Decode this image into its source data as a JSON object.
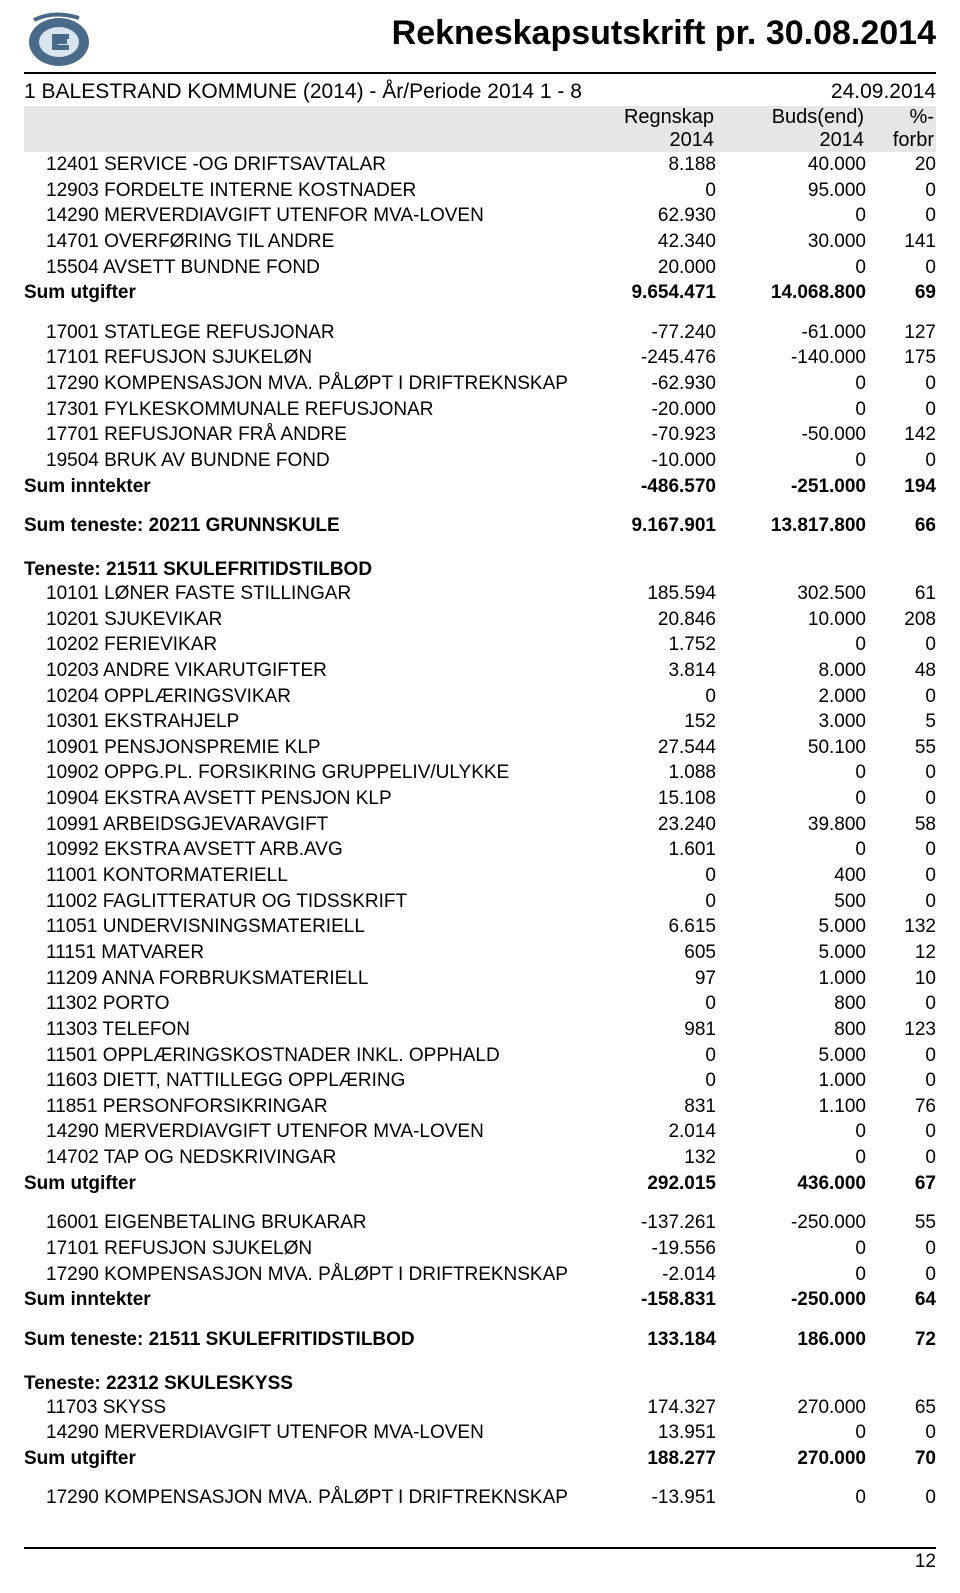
{
  "header": {
    "title": "Rekneskapsutskrift pr. 30.08.2014",
    "subtitle_left": "1 BALESTRAND KOMMUNE (2014) - År/Periode 2014 1 - 8",
    "subtitle_right": "24.09.2014",
    "col1a": "Regnskap",
    "col1b": "2014",
    "col2a": "Buds(end)",
    "col2b": "2014",
    "col3a": "%-",
    "col3b": "forbr"
  },
  "block1": {
    "rows": [
      {
        "d": "12401 SERVICE -OG DRIFTSAVTALAR",
        "a": "8.188",
        "b": "40.000",
        "c": "20"
      },
      {
        "d": "12903 FORDELTE INTERNE KOSTNADER",
        "a": "0",
        "b": "95.000",
        "c": "0"
      },
      {
        "d": "14290 MERVERDIAVGIFT UTENFOR MVA-LOVEN",
        "a": "62.930",
        "b": "0",
        "c": "0"
      },
      {
        "d": "14701 OVERFØRING TIL ANDRE",
        "a": "42.340",
        "b": "30.000",
        "c": "141"
      },
      {
        "d": "15504 AVSETT BUNDNE FOND",
        "a": "20.000",
        "b": "0",
        "c": "0"
      }
    ],
    "sum": {
      "d": "Sum utgifter",
      "a": "9.654.471",
      "b": "14.068.800",
      "c": "69"
    }
  },
  "block2": {
    "rows": [
      {
        "d": "17001 STATLEGE REFUSJONAR",
        "a": "-77.240",
        "b": "-61.000",
        "c": "127"
      },
      {
        "d": "17101 REFUSJON SJUKELØN",
        "a": "-245.476",
        "b": "-140.000",
        "c": "175"
      },
      {
        "d": "17290 KOMPENSASJON MVA. PÅLØPT I DRIFTREKNSKAP",
        "a": "-62.930",
        "b": "0",
        "c": "0"
      },
      {
        "d": "17301 FYLKESKOMMUNALE REFUSJONAR",
        "a": "-20.000",
        "b": "0",
        "c": "0"
      },
      {
        "d": "17701 REFUSJONAR FRÅ ANDRE",
        "a": "-70.923",
        "b": "-50.000",
        "c": "142"
      },
      {
        "d": "19504 BRUK AV BUNDNE FOND",
        "a": "-10.000",
        "b": "0",
        "c": "0"
      }
    ],
    "sum": {
      "d": "Sum inntekter",
      "a": "-486.570",
      "b": "-251.000",
      "c": "194"
    }
  },
  "sum_teneste1": {
    "d": "Sum teneste: 20211 GRUNNSKULE",
    "a": "9.167.901",
    "b": "13.817.800",
    "c": "66"
  },
  "teneste2_title": "Teneste: 21511 SKULEFRITIDSTILBOD",
  "block3": {
    "rows": [
      {
        "d": "10101 LØNER FASTE STILLINGAR",
        "a": "185.594",
        "b": "302.500",
        "c": "61"
      },
      {
        "d": "10201 SJUKEVIKAR",
        "a": "20.846",
        "b": "10.000",
        "c": "208"
      },
      {
        "d": "10202 FERIEVIKAR",
        "a": "1.752",
        "b": "0",
        "c": "0"
      },
      {
        "d": "10203 ANDRE VIKARUTGIFTER",
        "a": "3.814",
        "b": "8.000",
        "c": "48"
      },
      {
        "d": "10204 OPPLÆRINGSVIKAR",
        "a": "0",
        "b": "2.000",
        "c": "0"
      },
      {
        "d": "10301 EKSTRAHJELP",
        "a": "152",
        "b": "3.000",
        "c": "5"
      },
      {
        "d": "10901 PENSJONSPREMIE KLP",
        "a": "27.544",
        "b": "50.100",
        "c": "55"
      },
      {
        "d": "10902 OPPG.PL. FORSIKRING GRUPPELIV/ULYKKE",
        "a": "1.088",
        "b": "0",
        "c": "0"
      },
      {
        "d": "10904  EKSTRA AVSETT PENSJON KLP",
        "a": "15.108",
        "b": "0",
        "c": "0"
      },
      {
        "d": "10991 ARBEIDSGJEVARAVGIFT",
        "a": "23.240",
        "b": "39.800",
        "c": "58"
      },
      {
        "d": "10992 EKSTRA AVSETT ARB.AVG",
        "a": "1.601",
        "b": "0",
        "c": "0"
      },
      {
        "d": "11001 KONTORMATERIELL",
        "a": "0",
        "b": "400",
        "c": "0"
      },
      {
        "d": "11002 FAGLITTERATUR OG TIDSSKRIFT",
        "a": "0",
        "b": "500",
        "c": "0"
      },
      {
        "d": "11051 UNDERVISNINGSMATERIELL",
        "a": "6.615",
        "b": "5.000",
        "c": "132"
      },
      {
        "d": "11151 MATVARER",
        "a": "605",
        "b": "5.000",
        "c": "12"
      },
      {
        "d": "11209 ANNA FORBRUKSMATERIELL",
        "a": "97",
        "b": "1.000",
        "c": "10"
      },
      {
        "d": "11302 PORTO",
        "a": "0",
        "b": "800",
        "c": "0"
      },
      {
        "d": "11303 TELEFON",
        "a": "981",
        "b": "800",
        "c": "123"
      },
      {
        "d": "11501 OPPLÆRINGSKOSTNADER INKL. OPPHALD",
        "a": "0",
        "b": "5.000",
        "c": "0"
      },
      {
        "d": "11603 DIETT, NATTILLEGG OPPLÆRING",
        "a": "0",
        "b": "1.000",
        "c": "0"
      },
      {
        "d": "11851 PERSONFORSIKRINGAR",
        "a": "831",
        "b": "1.100",
        "c": "76"
      },
      {
        "d": "14290 MERVERDIAVGIFT UTENFOR MVA-LOVEN",
        "a": "2.014",
        "b": "0",
        "c": "0"
      },
      {
        "d": "14702 TAP OG NEDSKRIVINGAR",
        "a": "132",
        "b": "0",
        "c": "0"
      }
    ],
    "sum": {
      "d": "Sum utgifter",
      "a": "292.015",
      "b": "436.000",
      "c": "67"
    }
  },
  "block4": {
    "rows": [
      {
        "d": "16001 EIGENBETALING BRUKARAR",
        "a": "-137.261",
        "b": "-250.000",
        "c": "55"
      },
      {
        "d": "17101 REFUSJON SJUKELØN",
        "a": "-19.556",
        "b": "0",
        "c": "0"
      },
      {
        "d": "17290 KOMPENSASJON MVA. PÅLØPT I DRIFTREKNSKAP",
        "a": "-2.014",
        "b": "0",
        "c": "0"
      }
    ],
    "sum": {
      "d": "Sum inntekter",
      "a": "-158.831",
      "b": "-250.000",
      "c": "64"
    }
  },
  "sum_teneste2": {
    "d": "Sum teneste: 21511 SKULEFRITIDSTILBOD",
    "a": "133.184",
    "b": "186.000",
    "c": "72"
  },
  "teneste3_title": "Teneste: 22312 SKULESKYSS",
  "block5": {
    "rows": [
      {
        "d": "11703 SKYSS",
        "a": "174.327",
        "b": "270.000",
        "c": "65"
      },
      {
        "d": "14290 MERVERDIAVGIFT UTENFOR MVA-LOVEN",
        "a": "13.951",
        "b": "0",
        "c": "0"
      }
    ],
    "sum": {
      "d": "Sum utgifter",
      "a": "188.277",
      "b": "270.000",
      "c": "70"
    }
  },
  "block6": {
    "rows": [
      {
        "d": "17290 KOMPENSASJON MVA. PÅLØPT I DRIFTREKNSKAP",
        "a": "-13.951",
        "b": "0",
        "c": "0"
      }
    ]
  },
  "pagenum": "12",
  "colors": {
    "header_bg": "#e6e6e6",
    "text": "#000000",
    "rule": "#000000"
  },
  "logo": {
    "outer": "#4a6a8a",
    "inner": "#d8e4ef"
  }
}
